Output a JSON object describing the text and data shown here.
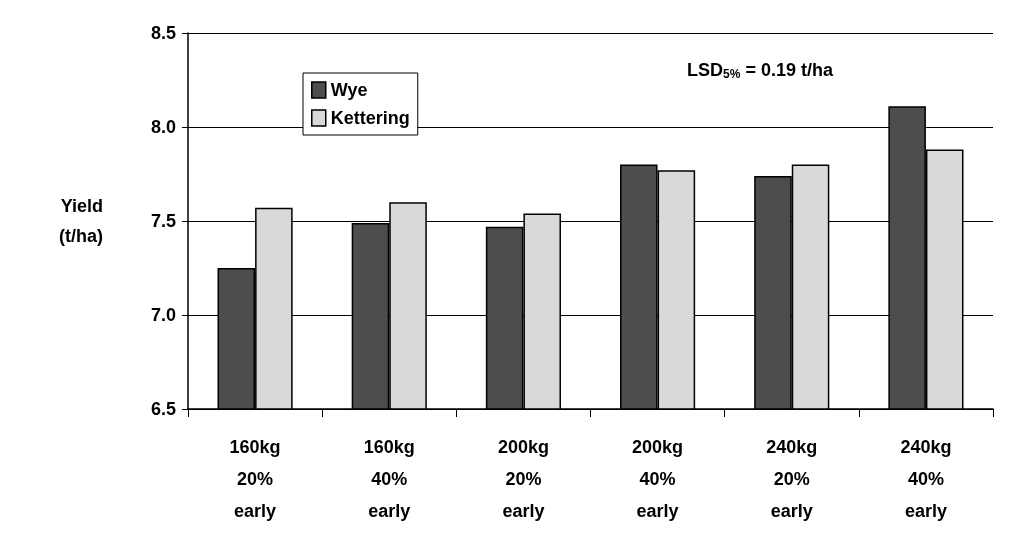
{
  "chart_data": {
    "type": "bar",
    "ylabel": "Yield\n(t/ha)",
    "categories": [
      "160kg\n20%\nearly",
      "160kg\n40%\nearly",
      "200kg\n20%\nearly",
      "200kg\n40%\nearly",
      "240kg\n20%\nearly",
      "240kg\n40%\nearly"
    ],
    "series": [
      {
        "name": "Wye",
        "color": "#4d4d4d",
        "values": [
          7.25,
          7.49,
          7.47,
          7.8,
          7.74,
          8.11
        ]
      },
      {
        "name": "Kettering",
        "color": "#d9d9d9",
        "values": [
          7.57,
          7.6,
          7.54,
          7.77,
          7.8,
          7.88
        ]
      }
    ],
    "ylim": [
      6.5,
      8.5
    ],
    "yticks": [
      6.5,
      {
        "value": 7,
        "label": "7.0"
      },
      7.5,
      {
        "value": 8,
        "label": "8.0"
      },
      8.5
    ],
    "grid": "y",
    "legend": "top left",
    "annotations": [
      "LSD$_{5%}$ = 0.19 t/ha"
    ]
  }
}
